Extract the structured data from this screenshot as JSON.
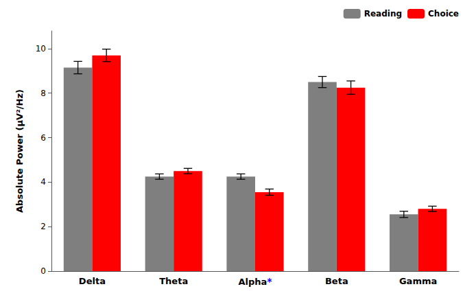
{
  "chart_data": {
    "type": "bar",
    "categories": [
      "Delta",
      "Theta",
      "Alpha",
      "Beta",
      "Gamma"
    ],
    "series": [
      {
        "name": "Reading",
        "color": "#7f7f7f",
        "values": [
          9.15,
          4.25,
          4.25,
          8.5,
          2.55
        ],
        "errors": [
          0.28,
          0.12,
          0.12,
          0.25,
          0.14
        ]
      },
      {
        "name": "Choice",
        "color": "#ff0000",
        "values": [
          9.7,
          4.5,
          3.55,
          8.25,
          2.8
        ],
        "errors": [
          0.28,
          0.12,
          0.14,
          0.3,
          0.12
        ]
      }
    ],
    "ylabel": "Absolute Power (μV²/Hz)",
    "ylim": [
      0,
      10.8
    ],
    "yticks": [
      0,
      2,
      4,
      6,
      8,
      10
    ],
    "annotations": [
      {
        "text": "*",
        "category": "Alpha",
        "color": "#0000ff"
      }
    ],
    "legend": "upper right",
    "grid": false
  }
}
